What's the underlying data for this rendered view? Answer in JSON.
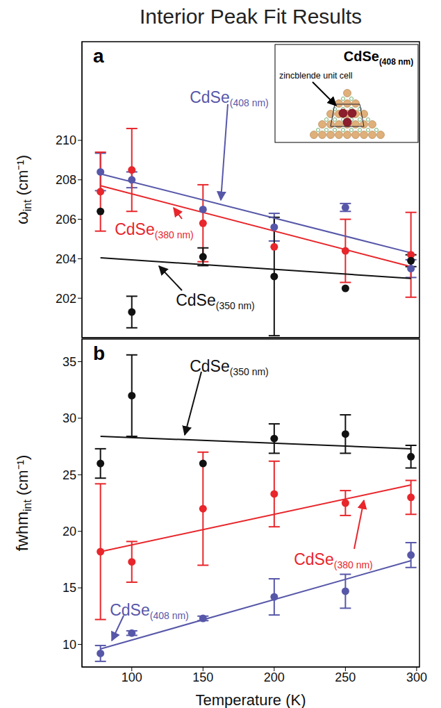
{
  "title": "Interior Peak Fit Results",
  "chart_data": [
    {
      "type": "scatter",
      "panel": "a",
      "y_label": {
        "text": "ω",
        "subscript": "int",
        "unit": "(cm⁻¹)"
      },
      "x": [
        78,
        100,
        150,
        200,
        250,
        296
      ],
      "xlim": [
        65,
        302
      ],
      "xticks": [
        100,
        150,
        200,
        250,
        300
      ],
      "ylim": [
        200,
        215
      ],
      "yticks": [
        202,
        204,
        206,
        208,
        210
      ],
      "tick_labels": "y",
      "marker": "circle",
      "series": [
        {
          "name": "CdSe",
          "subscript": "(408 nm)",
          "color": "#5757a9",
          "values": [
            208.4,
            208.0,
            206.5,
            205.6,
            206.6,
            203.5
          ],
          "errors": [
            0.95,
            0.4,
            null,
            0.7,
            0.2,
            0.45
          ],
          "fit": {
            "x": [
              78,
              296
            ],
            "values": [
              208.3,
              204.3
            ]
          }
        },
        {
          "name": "CdSe",
          "subscript": "(380 nm)",
          "color": "#e8262b",
          "values": [
            207.4,
            208.5,
            205.8,
            204.6,
            204.4,
            204.2
          ],
          "errors": [
            2.0,
            2.1,
            1.95,
            null,
            1.6,
            2.15
          ],
          "fit": {
            "x": [
              78,
              296
            ],
            "values": [
              207.7,
              203.6
            ]
          }
        },
        {
          "name": "CdSe",
          "subscript": "(350 nm)",
          "color": "#111111",
          "values": [
            206.4,
            201.3,
            204.1,
            203.1,
            202.5,
            203.9
          ],
          "errors": [
            null,
            0.8,
            0.45,
            3.0,
            null,
            0.3
          ],
          "fit": {
            "x": [
              78,
              296
            ],
            "values": [
              204.05,
              203.0
            ]
          }
        }
      ],
      "inset": {
        "title": "CdSe",
        "subscript": "(408 nm)",
        "label": "zincblende unit cell"
      }
    },
    {
      "type": "scatter",
      "panel": "b",
      "y_label": {
        "text": "fwhm",
        "subscript": "int",
        "unit": "(cm⁻¹)"
      },
      "x_label": "Temperature (K)",
      "x": [
        78,
        100,
        150,
        200,
        250,
        296
      ],
      "xlim": [
        65,
        302
      ],
      "xticks": [
        100,
        150,
        200,
        250,
        300
      ],
      "ylim": [
        8,
        37
      ],
      "yticks": [
        10,
        15,
        20,
        25,
        30,
        35
      ],
      "tick_labels": true,
      "marker": "circle",
      "series": [
        {
          "name": "CdSe",
          "subscript": "(408 nm)",
          "color": "#5757a9",
          "values": [
            9.2,
            11.0,
            12.3,
            14.2,
            14.7,
            17.9
          ],
          "errors": [
            0.7,
            0.2,
            0.2,
            1.6,
            1.5,
            1.1
          ],
          "fit": {
            "x": [
              78,
              296
            ],
            "values": [
              9.6,
              17.4
            ]
          }
        },
        {
          "name": "CdSe",
          "subscript": "(380 nm)",
          "color": "#e8262b",
          "values": [
            18.2,
            17.3,
            22.0,
            23.3,
            22.5,
            23.0
          ],
          "errors": [
            6.0,
            1.8,
            5.0,
            2.9,
            1.1,
            1.5
          ],
          "fit": {
            "x": [
              78,
              296
            ],
            "values": [
              18.2,
              24.1
            ]
          }
        },
        {
          "name": "CdSe",
          "subscript": "(350 nm)",
          "color": "#111111",
          "values": [
            26.0,
            32.0,
            26.0,
            28.2,
            28.6,
            26.6
          ],
          "errors": [
            1.3,
            3.6,
            null,
            1.3,
            1.7,
            1.0
          ],
          "fit": {
            "x": [
              78,
              296
            ],
            "values": [
              28.4,
              27.3
            ]
          }
        }
      ]
    }
  ]
}
